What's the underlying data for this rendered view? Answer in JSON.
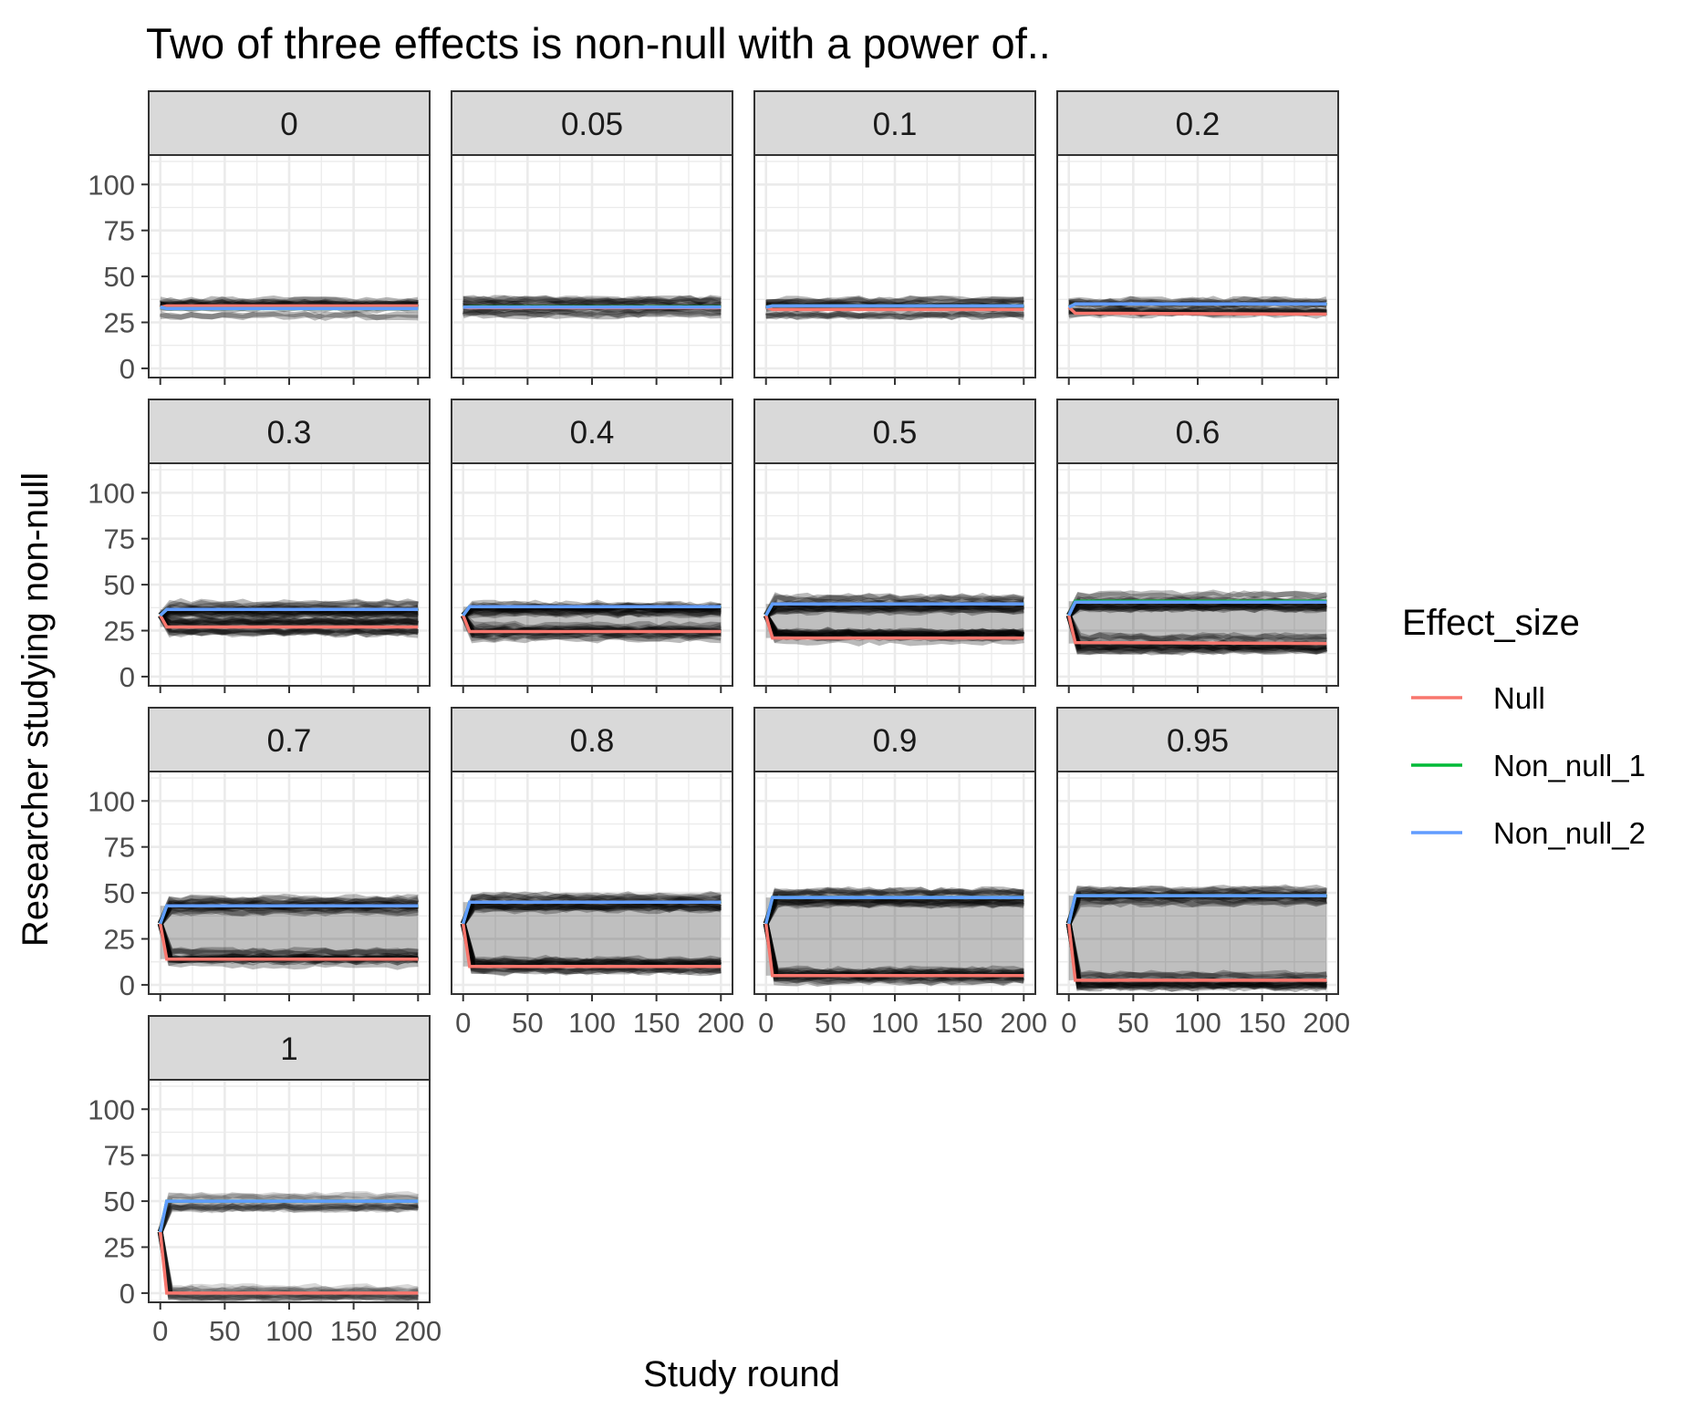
{
  "chart_data": {
    "type": "line",
    "title": "Two of three effects is non-null with a power of..",
    "xlabel": "Study round",
    "ylabel": "Researcher studying non-null",
    "xlim": [
      0,
      200
    ],
    "ylim": [
      0,
      100
    ],
    "x_ticks": [
      0,
      50,
      100,
      150,
      200
    ],
    "y_ticks": [
      0,
      25,
      50,
      75,
      100
    ],
    "grid": true,
    "legend": {
      "title": "Effect_size",
      "position": "right",
      "entries": [
        {
          "name": "Null",
          "color": "#F8766D"
        },
        {
          "name": "Non_null_1",
          "color": "#00BA38"
        },
        {
          "name": "Non_null_2",
          "color": "#619CFF"
        }
      ]
    },
    "facet_var": "power",
    "panels": [
      {
        "label": "0",
        "series": [
          {
            "name": "Null",
            "values": [
              {
                "x": 0,
                "y": 33.3
              },
              {
                "x": 5,
                "y": 34
              },
              {
                "x": 200,
                "y": 34
              }
            ]
          },
          {
            "name": "Non_null_1",
            "values": [
              {
                "x": 0,
                "y": 33.3
              },
              {
                "x": 5,
                "y": 32.5
              },
              {
                "x": 200,
                "y": 32.5
              }
            ]
          },
          {
            "name": "Non_null_2",
            "values": [
              {
                "x": 0,
                "y": 33.3
              },
              {
                "x": 5,
                "y": 32.5
              },
              {
                "x": 200,
                "y": 32.5
              }
            ]
          }
        ]
      },
      {
        "label": "0.05",
        "series": [
          {
            "name": "Null",
            "values": [
              {
                "x": 0,
                "y": 33.3
              },
              {
                "x": 5,
                "y": 33
              },
              {
                "x": 200,
                "y": 33
              }
            ]
          },
          {
            "name": "Non_null_1",
            "values": [
              {
                "x": 0,
                "y": 33.3
              },
              {
                "x": 5,
                "y": 33.5
              },
              {
                "x": 200,
                "y": 33.5
              }
            ]
          },
          {
            "name": "Non_null_2",
            "values": [
              {
                "x": 0,
                "y": 33.3
              },
              {
                "x": 5,
                "y": 33.3
              },
              {
                "x": 200,
                "y": 33.3
              }
            ]
          }
        ]
      },
      {
        "label": "0.1",
        "series": [
          {
            "name": "Null",
            "values": [
              {
                "x": 0,
                "y": 33.3
              },
              {
                "x": 5,
                "y": 32
              },
              {
                "x": 200,
                "y": 32
              }
            ]
          },
          {
            "name": "Non_null_1",
            "values": [
              {
                "x": 0,
                "y": 33.3
              },
              {
                "x": 5,
                "y": 34
              },
              {
                "x": 200,
                "y": 34
              }
            ]
          },
          {
            "name": "Non_null_2",
            "values": [
              {
                "x": 0,
                "y": 33.3
              },
              {
                "x": 5,
                "y": 34
              },
              {
                "x": 200,
                "y": 34
              }
            ]
          }
        ]
      },
      {
        "label": "0.2",
        "series": [
          {
            "name": "Null",
            "values": [
              {
                "x": 0,
                "y": 33.3
              },
              {
                "x": 5,
                "y": 30
              },
              {
                "x": 200,
                "y": 29.5
              }
            ]
          },
          {
            "name": "Non_null_1",
            "values": [
              {
                "x": 0,
                "y": 33.3
              },
              {
                "x": 5,
                "y": 35
              },
              {
                "x": 200,
                "y": 35
              }
            ]
          },
          {
            "name": "Non_null_2",
            "values": [
              {
                "x": 0,
                "y": 33.3
              },
              {
                "x": 5,
                "y": 35
              },
              {
                "x": 200,
                "y": 35
              }
            ]
          }
        ]
      },
      {
        "label": "0.3",
        "series": [
          {
            "name": "Null",
            "values": [
              {
                "x": 0,
                "y": 33.3
              },
              {
                "x": 5,
                "y": 27
              },
              {
                "x": 200,
                "y": 27
              }
            ]
          },
          {
            "name": "Non_null_1",
            "values": [
              {
                "x": 0,
                "y": 33.3
              },
              {
                "x": 5,
                "y": 36.5
              },
              {
                "x": 200,
                "y": 36.5
              }
            ]
          },
          {
            "name": "Non_null_2",
            "values": [
              {
                "x": 0,
                "y": 33.3
              },
              {
                "x": 5,
                "y": 36.5
              },
              {
                "x": 200,
                "y": 36.5
              }
            ]
          }
        ]
      },
      {
        "label": "0.4",
        "series": [
          {
            "name": "Null",
            "values": [
              {
                "x": 0,
                "y": 33.3
              },
              {
                "x": 5,
                "y": 24.5
              },
              {
                "x": 200,
                "y": 24.5
              }
            ]
          },
          {
            "name": "Non_null_1",
            "values": [
              {
                "x": 0,
                "y": 33.3
              },
              {
                "x": 5,
                "y": 38
              },
              {
                "x": 200,
                "y": 38
              }
            ]
          },
          {
            "name": "Non_null_2",
            "values": [
              {
                "x": 0,
                "y": 33.3
              },
              {
                "x": 5,
                "y": 38
              },
              {
                "x": 200,
                "y": 38
              }
            ]
          }
        ]
      },
      {
        "label": "0.5",
        "series": [
          {
            "name": "Null",
            "values": [
              {
                "x": 0,
                "y": 33.3
              },
              {
                "x": 5,
                "y": 21
              },
              {
                "x": 200,
                "y": 21
              }
            ]
          },
          {
            "name": "Non_null_1",
            "values": [
              {
                "x": 0,
                "y": 33.3
              },
              {
                "x": 5,
                "y": 39.5
              },
              {
                "x": 200,
                "y": 39.5
              }
            ]
          },
          {
            "name": "Non_null_2",
            "values": [
              {
                "x": 0,
                "y": 33.3
              },
              {
                "x": 5,
                "y": 39.5
              },
              {
                "x": 200,
                "y": 39.5
              }
            ]
          }
        ]
      },
      {
        "label": "0.6",
        "series": [
          {
            "name": "Null",
            "values": [
              {
                "x": 0,
                "y": 33.3
              },
              {
                "x": 5,
                "y": 18.5
              },
              {
                "x": 200,
                "y": 18
              }
            ]
          },
          {
            "name": "Non_null_1",
            "values": [
              {
                "x": 0,
                "y": 33.3
              },
              {
                "x": 5,
                "y": 41
              },
              {
                "x": 200,
                "y": 41
              }
            ]
          },
          {
            "name": "Non_null_2",
            "values": [
              {
                "x": 0,
                "y": 33.3
              },
              {
                "x": 5,
                "y": 40.5
              },
              {
                "x": 200,
                "y": 40.5
              }
            ]
          }
        ]
      },
      {
        "label": "0.7",
        "series": [
          {
            "name": "Null",
            "values": [
              {
                "x": 0,
                "y": 33.3
              },
              {
                "x": 5,
                "y": 14
              },
              {
                "x": 200,
                "y": 14
              }
            ]
          },
          {
            "name": "Non_null_1",
            "values": [
              {
                "x": 0,
                "y": 33.3
              },
              {
                "x": 5,
                "y": 43
              },
              {
                "x": 200,
                "y": 43
              }
            ]
          },
          {
            "name": "Non_null_2",
            "values": [
              {
                "x": 0,
                "y": 33.3
              },
              {
                "x": 5,
                "y": 43
              },
              {
                "x": 200,
                "y": 43
              }
            ]
          }
        ]
      },
      {
        "label": "0.8",
        "series": [
          {
            "name": "Null",
            "values": [
              {
                "x": 0,
                "y": 33.3
              },
              {
                "x": 5,
                "y": 10
              },
              {
                "x": 200,
                "y": 10
              }
            ]
          },
          {
            "name": "Non_null_1",
            "values": [
              {
                "x": 0,
                "y": 33.3
              },
              {
                "x": 5,
                "y": 45
              },
              {
                "x": 200,
                "y": 45
              }
            ]
          },
          {
            "name": "Non_null_2",
            "values": [
              {
                "x": 0,
                "y": 33.3
              },
              {
                "x": 5,
                "y": 45
              },
              {
                "x": 200,
                "y": 45
              }
            ]
          }
        ]
      },
      {
        "label": "0.9",
        "series": [
          {
            "name": "Null",
            "values": [
              {
                "x": 0,
                "y": 33.3
              },
              {
                "x": 5,
                "y": 5
              },
              {
                "x": 200,
                "y": 5
              }
            ]
          },
          {
            "name": "Non_null_1",
            "values": [
              {
                "x": 0,
                "y": 33.3
              },
              {
                "x": 5,
                "y": 47.5
              },
              {
                "x": 200,
                "y": 47.5
              }
            ]
          },
          {
            "name": "Non_null_2",
            "values": [
              {
                "x": 0,
                "y": 33.3
              },
              {
                "x": 5,
                "y": 47.5
              },
              {
                "x": 200,
                "y": 47.5
              }
            ]
          }
        ]
      },
      {
        "label": "0.95",
        "series": [
          {
            "name": "Null",
            "values": [
              {
                "x": 0,
                "y": 33.3
              },
              {
                "x": 5,
                "y": 2.5
              },
              {
                "x": 200,
                "y": 2.5
              }
            ]
          },
          {
            "name": "Non_null_1",
            "values": [
              {
                "x": 0,
                "y": 33.3
              },
              {
                "x": 5,
                "y": 48.5
              },
              {
                "x": 200,
                "y": 48.5
              }
            ]
          },
          {
            "name": "Non_null_2",
            "values": [
              {
                "x": 0,
                "y": 33.3
              },
              {
                "x": 5,
                "y": 48.5
              },
              {
                "x": 200,
                "y": 48.5
              }
            ]
          }
        ]
      },
      {
        "label": "1",
        "series": [
          {
            "name": "Null",
            "values": [
              {
                "x": 0,
                "y": 33.3
              },
              {
                "x": 5,
                "y": 0
              },
              {
                "x": 200,
                "y": 0
              }
            ]
          },
          {
            "name": "Non_null_1",
            "values": [
              {
                "x": 0,
                "y": 33.3
              },
              {
                "x": 5,
                "y": 50
              },
              {
                "x": 200,
                "y": 50
              }
            ]
          },
          {
            "name": "Non_null_2",
            "values": [
              {
                "x": 0,
                "y": 33.3
              },
              {
                "x": 5,
                "y": 50
              },
              {
                "x": 200,
                "y": 50
              }
            ]
          }
        ]
      }
    ]
  }
}
